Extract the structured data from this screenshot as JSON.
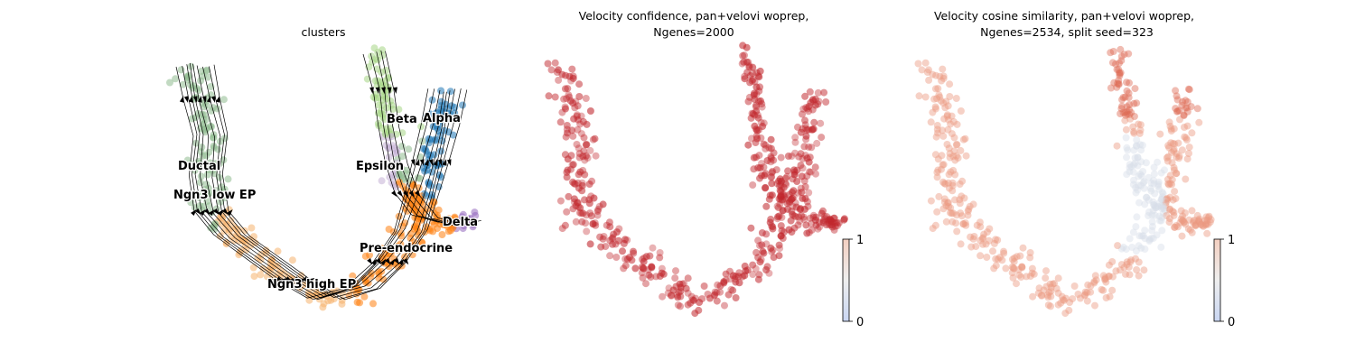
{
  "chart_data": [
    {
      "type": "scatter",
      "title": "clusters",
      "legend": "on data",
      "clusters": [
        {
          "name": "Ductal",
          "color": "#8fbc8f"
        },
        {
          "name": "Ngn3 low EP",
          "color": "#8fbc8f"
        },
        {
          "name": "Ngn3 high EP",
          "color": "#f5b36e"
        },
        {
          "name": "Pre-endocrine",
          "color": "#ff7f0e"
        },
        {
          "name": "Beta",
          "color": "#a6d685"
        },
        {
          "name": "Alpha",
          "color": "#1f77b4"
        },
        {
          "name": "Epsilon",
          "color": "#c5b0d5"
        },
        {
          "name": "Delta",
          "color": "#9467bd"
        }
      ],
      "streamlines": true
    },
    {
      "type": "scatter",
      "title": "Velocity confidence, pan+velovi woprep,",
      "subtitle": "Ngenes=2000",
      "colorbar": {
        "min": 0,
        "max": 1,
        "ticks": [
          "0",
          "1"
        ],
        "cmap": "coolwarm"
      },
      "point_color": "#c1272d"
    },
    {
      "type": "scatter",
      "title": "Velocity cosine similarity, pan+velovi woprep,",
      "subtitle": "Ngenes=2534, split seed=323",
      "colorbar": {
        "min": 0,
        "max": 1,
        "ticks": [
          "0",
          "1"
        ],
        "cmap": "coolwarm"
      },
      "point_color": "#e8806a"
    }
  ]
}
